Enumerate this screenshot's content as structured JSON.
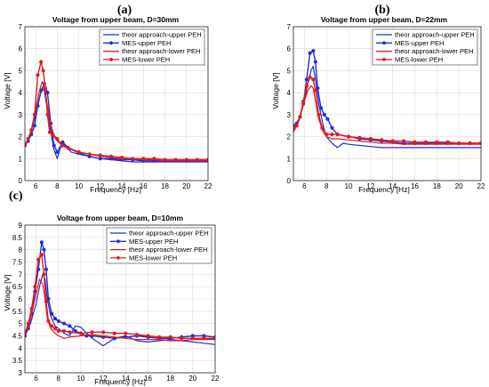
{
  "figure": {
    "panel_letters": [
      "(a)",
      "(b)",
      "(c)"
    ]
  },
  "colors": {
    "theor_upper": "#1f2fd6",
    "mes_upper": "#1f2fd6",
    "theor_lower": "#e41a1c",
    "mes_lower": "#e41a1c"
  },
  "chart_data": [
    {
      "type": "line",
      "panel": "(a)",
      "title": "Voltage from upper beam, D=30mm",
      "xlabel": "Frequency [Hz]",
      "ylabel": "Voltage [V]",
      "xlim": [
        5,
        22
      ],
      "ylim": [
        0,
        7
      ],
      "xticks": [
        6,
        8,
        10,
        12,
        14,
        16,
        18,
        20,
        22
      ],
      "yticks": [
        0,
        1,
        2,
        3,
        4,
        5,
        6,
        7
      ],
      "grid": true,
      "legend_position": "top-right",
      "series": [
        {
          "name": "theor approach-upper PEH",
          "color_key": "theor_upper",
          "markers": false,
          "x": [
            5,
            5.5,
            6,
            6.3,
            6.6,
            6.8,
            7.0,
            7.3,
            7.7,
            8.0,
            8.3,
            8.7,
            9.3,
            10,
            11,
            12,
            13,
            14,
            15,
            16,
            17,
            18,
            19,
            20,
            21,
            22
          ],
          "y": [
            1.6,
            2.1,
            3.0,
            3.7,
            4.2,
            4.1,
            3.5,
            2.5,
            1.4,
            1.0,
            1.5,
            1.6,
            1.3,
            1.2,
            1.1,
            1.0,
            0.95,
            0.9,
            0.85,
            0.85,
            0.85,
            0.85,
            0.85,
            0.85,
            0.85,
            0.85
          ]
        },
        {
          "name": "MES-upper PEH",
          "color_key": "mes_upper",
          "markers": true,
          "x": [
            5,
            5.3,
            5.6,
            5.9,
            6.2,
            6.5,
            6.8,
            7.1,
            7.4,
            7.7,
            8.0,
            8.5,
            9,
            10,
            11,
            12,
            13,
            14,
            15,
            16,
            17,
            18,
            19,
            20,
            21,
            22
          ],
          "y": [
            1.6,
            1.8,
            2.1,
            2.5,
            3.4,
            4.1,
            4.4,
            4.0,
            2.6,
            1.6,
            1.3,
            1.75,
            1.5,
            1.25,
            1.1,
            1.0,
            1.0,
            0.95,
            0.95,
            0.9,
            0.9,
            0.9,
            0.9,
            0.9,
            0.9,
            0.9
          ]
        },
        {
          "name": "theor approach-lower PEH",
          "color_key": "theor_lower",
          "markers": false,
          "x": [
            5,
            5.5,
            6,
            6.3,
            6.6,
            6.8,
            7.0,
            7.3,
            7.7,
            8.0,
            8.5,
            9,
            10,
            11,
            12,
            13,
            14,
            15,
            16,
            17,
            18,
            19,
            20,
            21,
            22
          ],
          "y": [
            1.6,
            2.1,
            3.2,
            4.0,
            4.5,
            4.3,
            3.7,
            2.8,
            2.0,
            1.8,
            1.6,
            1.45,
            1.3,
            1.2,
            1.1,
            1.05,
            1.0,
            1.0,
            0.95,
            0.95,
            0.9,
            0.9,
            0.9,
            0.9,
            0.9
          ]
        },
        {
          "name": "MES-lower PEH",
          "color_key": "mes_lower",
          "markers": true,
          "x": [
            5,
            5.3,
            5.6,
            5.9,
            6.2,
            6.5,
            6.7,
            6.9,
            7.1,
            7.3,
            7.6,
            8.0,
            8.5,
            9,
            10,
            11,
            12,
            13,
            14,
            15,
            16,
            17,
            18,
            19,
            20,
            21,
            22
          ],
          "y": [
            1.6,
            1.9,
            2.3,
            3.0,
            4.8,
            5.4,
            5.0,
            4.2,
            3.0,
            2.2,
            2.1,
            1.9,
            1.6,
            1.5,
            1.3,
            1.2,
            1.15,
            1.1,
            1.05,
            1.0,
            1.0,
            1.0,
            0.95,
            0.95,
            0.95,
            0.95,
            0.95
          ]
        }
      ]
    },
    {
      "type": "line",
      "panel": "(b)",
      "title": "Voltage from upper beam, D=22mm",
      "xlabel": "Frequency [Hz]",
      "ylabel": "Voltage [V]",
      "xlim": [
        5,
        22
      ],
      "ylim": [
        0,
        7
      ],
      "xticks": [
        6,
        8,
        10,
        12,
        14,
        16,
        18,
        20,
        22
      ],
      "yticks": [
        0,
        1,
        2,
        3,
        4,
        5,
        6,
        7
      ],
      "grid": true,
      "legend_position": "top-right",
      "series": [
        {
          "name": "theor approach-upper PEH",
          "color_key": "theor_upper",
          "markers": false,
          "x": [
            5,
            5.5,
            6,
            6.3,
            6.6,
            6.8,
            7.0,
            7.3,
            7.7,
            8.0,
            8.5,
            9,
            9.5,
            10,
            11,
            12,
            13,
            14,
            15,
            16,
            17,
            18,
            19,
            20,
            21,
            22
          ],
          "y": [
            2.4,
            2.8,
            3.6,
            4.4,
            5.0,
            5.2,
            4.6,
            3.5,
            2.5,
            2.0,
            1.7,
            1.5,
            1.7,
            1.65,
            1.6,
            1.55,
            1.5,
            1.5,
            1.5,
            1.5,
            1.5,
            1.5,
            1.5,
            1.5,
            1.5,
            1.5
          ]
        },
        {
          "name": "MES-upper PEH",
          "color_key": "mes_upper",
          "markers": true,
          "x": [
            5,
            5.3,
            5.6,
            5.9,
            6.2,
            6.5,
            6.8,
            7.0,
            7.2,
            7.5,
            7.8,
            8.1,
            8.5,
            9,
            10,
            11,
            12,
            13,
            14,
            15,
            16,
            17,
            18,
            19,
            20,
            21,
            22
          ],
          "y": [
            2.5,
            2.6,
            2.9,
            3.5,
            4.6,
            5.8,
            5.9,
            5.4,
            4.2,
            3.3,
            3.0,
            2.8,
            2.4,
            2.1,
            2.0,
            1.9,
            1.85,
            1.8,
            1.75,
            1.7,
            1.7,
            1.7,
            1.7,
            1.7,
            1.7,
            1.7,
            1.7
          ]
        },
        {
          "name": "theor approach-lower PEH",
          "color_key": "theor_lower",
          "markers": false,
          "x": [
            5,
            5.5,
            6,
            6.3,
            6.6,
            6.8,
            7.0,
            7.3,
            7.7,
            8.0,
            8.5,
            9,
            10,
            11,
            12,
            13,
            14,
            15,
            16,
            17,
            18,
            19,
            20,
            21,
            22
          ],
          "y": [
            2.2,
            2.7,
            3.6,
            4.1,
            4.3,
            4.2,
            3.6,
            2.8,
            2.2,
            2.0,
            1.9,
            1.9,
            1.85,
            1.8,
            1.75,
            1.7,
            1.7,
            1.65,
            1.65,
            1.65,
            1.65,
            1.65,
            1.65,
            1.65,
            1.65
          ]
        },
        {
          "name": "MES-lower PEH",
          "color_key": "mes_lower",
          "markers": true,
          "x": [
            5,
            5.3,
            5.6,
            5.9,
            6.2,
            6.5,
            6.8,
            7.0,
            7.3,
            7.6,
            8.0,
            8.5,
            9,
            10,
            11,
            12,
            13,
            14,
            15,
            16,
            17,
            18,
            19,
            20,
            21,
            22
          ],
          "y": [
            2.4,
            2.5,
            2.9,
            3.6,
            4.3,
            4.7,
            4.6,
            4.1,
            3.0,
            2.4,
            2.1,
            2.1,
            2.1,
            2.0,
            1.95,
            1.9,
            1.85,
            1.8,
            1.8,
            1.75,
            1.75,
            1.75,
            1.75,
            1.7,
            1.7,
            1.7
          ]
        }
      ]
    },
    {
      "type": "line",
      "panel": "(c)",
      "title": "Voltage from upper beam, D=10mm",
      "xlabel": "Frequency [Hz]",
      "ylabel": "Voltage [V]",
      "xlim": [
        5,
        22
      ],
      "ylim": [
        3,
        9
      ],
      "xticks": [
        6,
        8,
        10,
        12,
        14,
        16,
        18,
        20,
        22
      ],
      "yticks": [
        3,
        3.5,
        4,
        4.5,
        5,
        5.5,
        6,
        6.5,
        7,
        7.5,
        8,
        8.5,
        9
      ],
      "grid": true,
      "legend_position": "top-right",
      "series": [
        {
          "name": "theor approach-upper PEH",
          "color_key": "theor_upper",
          "markers": false,
          "x": [
            5,
            5.5,
            6,
            6.3,
            6.6,
            6.8,
            7.0,
            7.3,
            7.7,
            8.0,
            8.5,
            9,
            9.5,
            10,
            11,
            12,
            13,
            14,
            15,
            16,
            17,
            18,
            19,
            20,
            21,
            22
          ],
          "y": [
            4.5,
            5.0,
            5.8,
            6.5,
            7.0,
            6.8,
            6.0,
            5.3,
            4.9,
            4.8,
            4.6,
            4.5,
            4.9,
            4.85,
            4.4,
            4.1,
            4.4,
            4.5,
            4.3,
            4.25,
            4.3,
            4.35,
            4.3,
            4.25,
            4.2,
            4.15
          ]
        },
        {
          "name": "MES-upper PEH",
          "color_key": "mes_upper",
          "markers": true,
          "x": [
            5,
            5.3,
            5.6,
            5.9,
            6.2,
            6.5,
            6.7,
            6.9,
            7.1,
            7.4,
            7.7,
            8.0,
            8.5,
            9,
            9.5,
            10,
            10.5,
            11,
            12,
            13,
            14,
            15,
            16,
            17,
            18,
            19,
            20,
            21,
            22
          ],
          "y": [
            4.5,
            4.8,
            5.4,
            6.3,
            7.2,
            8.3,
            8.0,
            7.2,
            6.0,
            5.4,
            5.2,
            5.1,
            5.0,
            4.9,
            4.7,
            4.6,
            4.5,
            4.5,
            4.45,
            4.4,
            4.45,
            4.5,
            4.45,
            4.4,
            4.4,
            4.45,
            4.5,
            4.5,
            4.45
          ]
        },
        {
          "name": "theor approach-lower PEH",
          "color_key": "theor_lower",
          "markers": false,
          "x": [
            5,
            5.5,
            6,
            6.3,
            6.6,
            6.8,
            7.0,
            7.3,
            7.7,
            8.0,
            8.5,
            9,
            10,
            11,
            12,
            13,
            14,
            15,
            16,
            17,
            18,
            19,
            20,
            21,
            22
          ],
          "y": [
            4.5,
            5.2,
            6.2,
            6.8,
            6.6,
            6.0,
            5.2,
            4.8,
            4.6,
            4.5,
            4.4,
            4.45,
            4.5,
            4.55,
            4.5,
            4.45,
            4.4,
            4.35,
            4.35,
            4.35,
            4.3,
            4.3,
            4.35,
            4.35,
            4.35
          ]
        },
        {
          "name": "MES-lower PEH",
          "color_key": "mes_lower",
          "markers": true,
          "x": [
            5,
            5.3,
            5.6,
            5.9,
            6.2,
            6.5,
            6.7,
            6.9,
            7.1,
            7.4,
            7.7,
            8.0,
            8.5,
            9,
            10,
            11,
            12,
            13,
            14,
            15,
            16,
            17,
            18,
            19,
            20,
            21,
            22
          ],
          "y": [
            4.6,
            5.0,
            5.6,
            6.5,
            7.6,
            7.8,
            7.0,
            5.9,
            5.1,
            4.9,
            4.8,
            4.7,
            4.7,
            4.65,
            4.6,
            4.65,
            4.65,
            4.6,
            4.6,
            4.55,
            4.5,
            4.45,
            4.45,
            4.4,
            4.4,
            4.4,
            4.4
          ]
        }
      ]
    }
  ]
}
